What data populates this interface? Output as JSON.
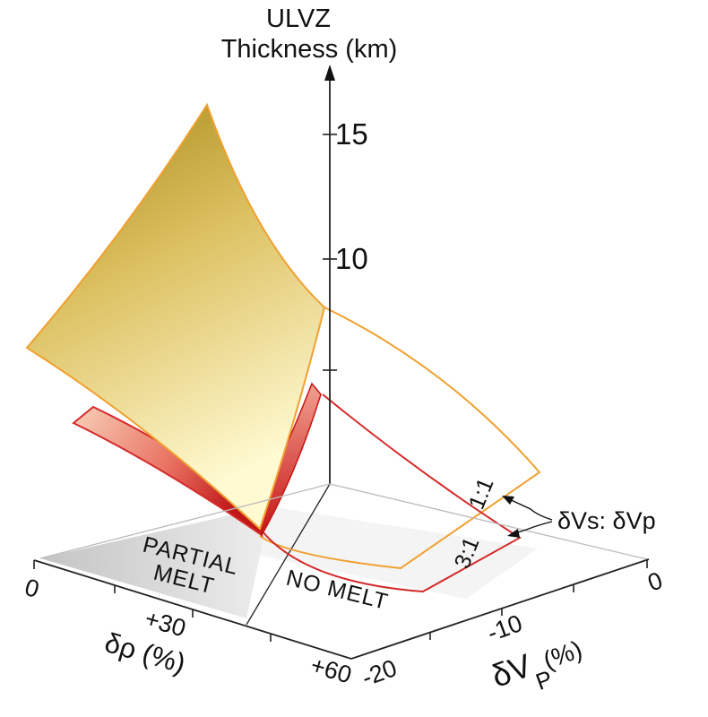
{
  "z_axis": {
    "title_line1": "ULVZ",
    "title_line2": "Thickness (km)",
    "ticks": [
      "15",
      "10"
    ]
  },
  "x_axis": {
    "title": "δρ (%)",
    "ticks": [
      "0",
      "+30",
      "+60"
    ]
  },
  "y_axis": {
    "title_main": "δV",
    "title_sub": "P",
    "title_rest": "(%)",
    "ticks": [
      "0",
      "-10",
      "-20"
    ]
  },
  "regions": {
    "partial_melt_line1": "PARTIAL",
    "partial_melt_line2": "MELT",
    "no_melt": "NO MELT"
  },
  "ratios": {
    "one_to_one": "1:1",
    "three_to_one": "3:1",
    "ratio_label": "δVs: δVp"
  },
  "colors": {
    "surface_1to1_edge": "#f0a030",
    "surface_3to1_edge": "#d42a2a",
    "surface_fill_light": "#fff8c8",
    "surface_fill_dark": "#a88a1a",
    "shadow": "#c8c8c8"
  }
}
